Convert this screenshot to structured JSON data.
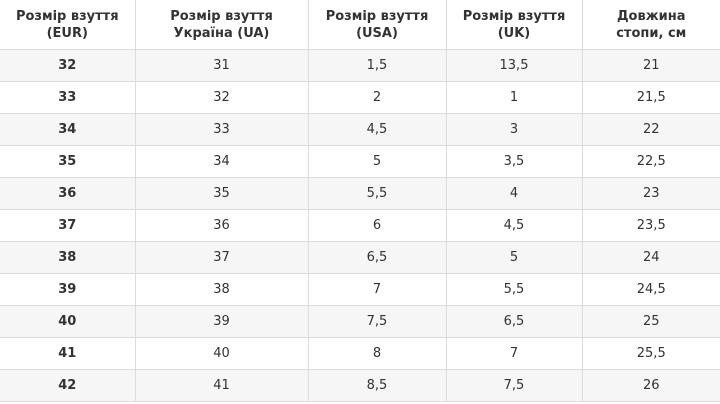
{
  "table": {
    "header": [
      "Розмір взуття\n(EUR)",
      "Розмір взуття\nУкраїна (UA)",
      "Розмір взуття\n(USA)",
      "Розмір взуття\n(UK)",
      "Довжина\nстопи, см"
    ],
    "rows": [
      [
        "32",
        "31",
        "1,5",
        "13,5",
        "21"
      ],
      [
        "33",
        "32",
        "2",
        "1",
        "21,5"
      ],
      [
        "34",
        "33",
        "4,5",
        "3",
        "22"
      ],
      [
        "35",
        "34",
        "5",
        "3,5",
        "22,5"
      ],
      [
        "36",
        "35",
        "5,5",
        "4",
        "23"
      ],
      [
        "37",
        "36",
        "6",
        "4,5",
        "23,5"
      ],
      [
        "38",
        "37",
        "6,5",
        "5",
        "24"
      ],
      [
        "39",
        "38",
        "7",
        "5,5",
        "24,5"
      ],
      [
        "40",
        "39",
        "7,5",
        "6,5",
        "25"
      ],
      [
        "41",
        "40",
        "8",
        "7",
        "25,5"
      ],
      [
        "42",
        "41",
        "8,5",
        "7,5",
        "26"
      ]
    ]
  }
}
